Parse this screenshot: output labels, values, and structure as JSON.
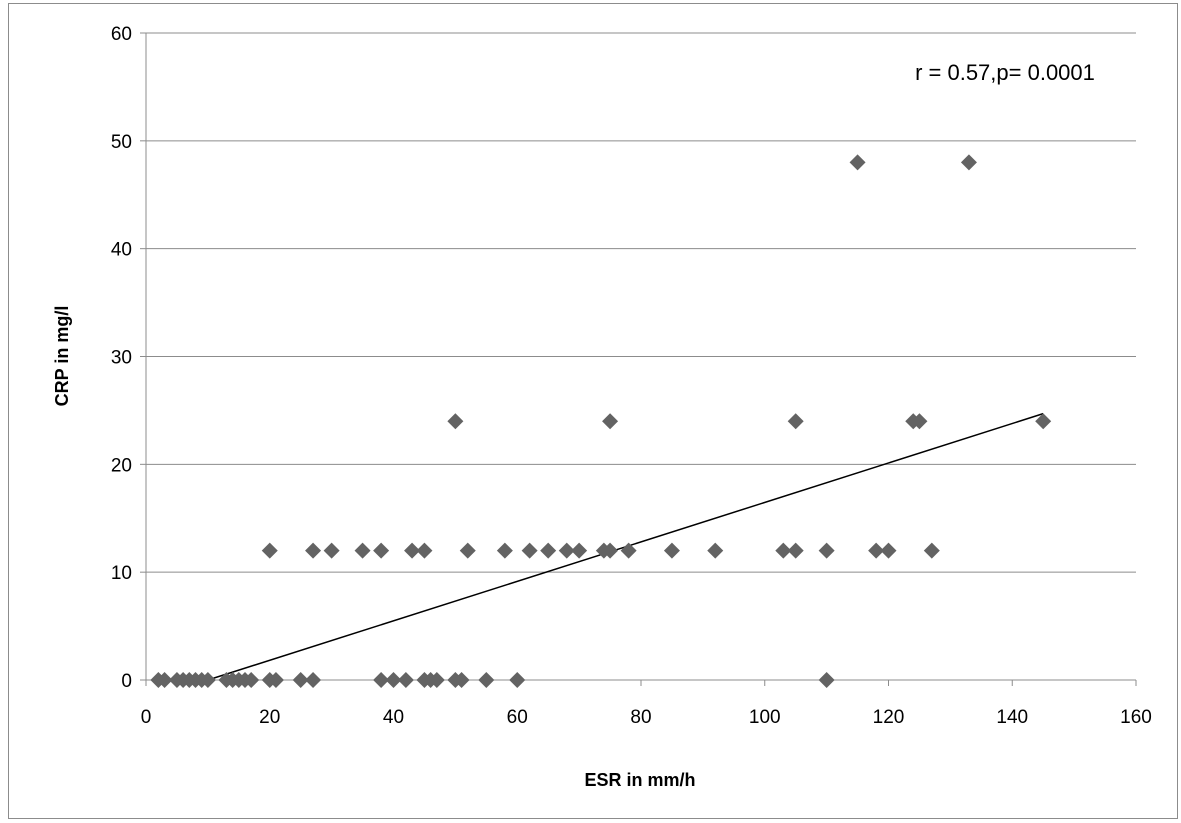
{
  "chart_data": {
    "type": "scatter",
    "xlabel": "ESR in  mm/h",
    "ylabel": "CRP in mg/l",
    "annotation": "r = 0.57,p= 0.0001",
    "xlim": [
      0,
      160
    ],
    "ylim": [
      0,
      60
    ],
    "x_ticks": [
      0,
      20,
      40,
      60,
      80,
      100,
      120,
      140,
      160
    ],
    "y_ticks": [
      0,
      10,
      20,
      30,
      40,
      50,
      60
    ],
    "grid": "horizontal",
    "marker": "diamond",
    "marker_color": "#636363",
    "line_color": "#000000",
    "grid_color": "#8c8c8c",
    "points": [
      {
        "x": 2,
        "y": 0
      },
      {
        "x": 3,
        "y": 0
      },
      {
        "x": 5,
        "y": 0
      },
      {
        "x": 6,
        "y": 0
      },
      {
        "x": 7,
        "y": 0
      },
      {
        "x": 8,
        "y": 0
      },
      {
        "x": 9,
        "y": 0
      },
      {
        "x": 10,
        "y": 0
      },
      {
        "x": 13,
        "y": 0
      },
      {
        "x": 14,
        "y": 0
      },
      {
        "x": 15,
        "y": 0
      },
      {
        "x": 16,
        "y": 0
      },
      {
        "x": 17,
        "y": 0
      },
      {
        "x": 20,
        "y": 0
      },
      {
        "x": 21,
        "y": 0
      },
      {
        "x": 25,
        "y": 0
      },
      {
        "x": 27,
        "y": 0
      },
      {
        "x": 38,
        "y": 0
      },
      {
        "x": 40,
        "y": 0
      },
      {
        "x": 42,
        "y": 0
      },
      {
        "x": 45,
        "y": 0
      },
      {
        "x": 46,
        "y": 0
      },
      {
        "x": 47,
        "y": 0
      },
      {
        "x": 50,
        "y": 0
      },
      {
        "x": 51,
        "y": 0
      },
      {
        "x": 55,
        "y": 0
      },
      {
        "x": 60,
        "y": 0
      },
      {
        "x": 110,
        "y": 0
      },
      {
        "x": 20,
        "y": 12
      },
      {
        "x": 27,
        "y": 12
      },
      {
        "x": 30,
        "y": 12
      },
      {
        "x": 35,
        "y": 12
      },
      {
        "x": 38,
        "y": 12
      },
      {
        "x": 43,
        "y": 12
      },
      {
        "x": 45,
        "y": 12
      },
      {
        "x": 52,
        "y": 12
      },
      {
        "x": 58,
        "y": 12
      },
      {
        "x": 62,
        "y": 12
      },
      {
        "x": 65,
        "y": 12
      },
      {
        "x": 68,
        "y": 12
      },
      {
        "x": 70,
        "y": 12
      },
      {
        "x": 74,
        "y": 12
      },
      {
        "x": 75,
        "y": 12
      },
      {
        "x": 78,
        "y": 12
      },
      {
        "x": 85,
        "y": 12
      },
      {
        "x": 92,
        "y": 12
      },
      {
        "x": 103,
        "y": 12
      },
      {
        "x": 105,
        "y": 12
      },
      {
        "x": 110,
        "y": 12
      },
      {
        "x": 118,
        "y": 12
      },
      {
        "x": 120,
        "y": 12
      },
      {
        "x": 127,
        "y": 12
      },
      {
        "x": 50,
        "y": 24
      },
      {
        "x": 75,
        "y": 24
      },
      {
        "x": 105,
        "y": 24
      },
      {
        "x": 124,
        "y": 24
      },
      {
        "x": 125,
        "y": 24
      },
      {
        "x": 145,
        "y": 24
      },
      {
        "x": 115,
        "y": 48
      },
      {
        "x": 133,
        "y": 48
      }
    ],
    "trendline": {
      "x": [
        10,
        145
      ],
      "y": [
        0,
        24.7
      ]
    }
  }
}
